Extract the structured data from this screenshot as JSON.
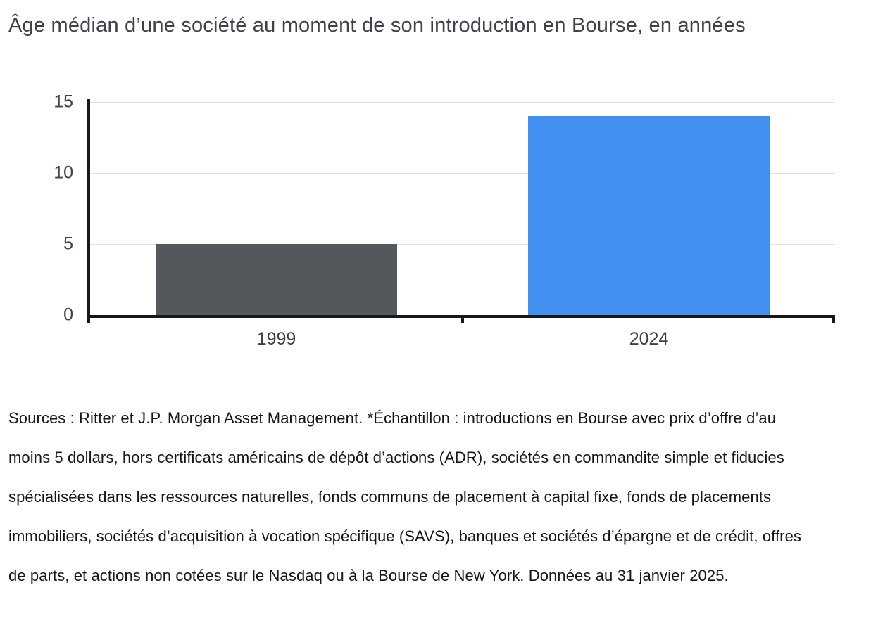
{
  "title": "Âge médian d’une société au moment de son introduction en Bourse, en années",
  "chart_data": {
    "type": "bar",
    "categories": [
      "1999",
      "2024"
    ],
    "values": [
      5,
      14
    ],
    "title": "Âge médian d’une société au moment de son introduction en Bourse, en années",
    "xlabel": "",
    "ylabel": "",
    "ylim": [
      0,
      15
    ],
    "yticks": [
      0,
      5,
      10,
      15
    ],
    "grid": true,
    "legend": "none",
    "bar_colors": [
      "#54585c",
      "#418ff0"
    ],
    "axis_color": "#17181a",
    "gridline_color": "#e2e2e2"
  },
  "footer": {
    "source_note": "Sources : Ritter et J.P. Morgan Asset Management. *Échantillon : introductions en Bourse avec prix d’offre d’au moins 5 dollars, hors certificats américains de dépôt d’actions (ADR), sociétés en commandite simple et fiducies spécialisées dans les ressources naturelles, fonds communs de placement à capital fixe, fonds de placements immobiliers, sociétés d’acquisition à vocation spécifique (SAVS), banques et sociétés d’épargne et de crédit, offres de parts, et actions non cotées sur le Nasdaq ou à la Bourse de New York. Données au 31 janvier 2025.",
    "lines": [
      "Sources : Ritter et J.P. Morgan Asset Management. *Échantillon : introductions en Bourse avec prix d’offre d’au",
      "moins 5 dollars, hors certificats américains de dépôt d’actions (ADR), sociétés en commandite simple et fiducies",
      "spécialisées dans les ressources naturelles, fonds communs de placement à capital fixe, fonds de placements",
      "immobiliers, sociétés d’acquisition à vocation spécifique (SAVS), banques et sociétés d’épargne et de crédit, offres",
      "de parts, et actions non cotées sur le Nasdaq ou à la Bourse de New York. Données au 31 janvier 2025."
    ]
  }
}
